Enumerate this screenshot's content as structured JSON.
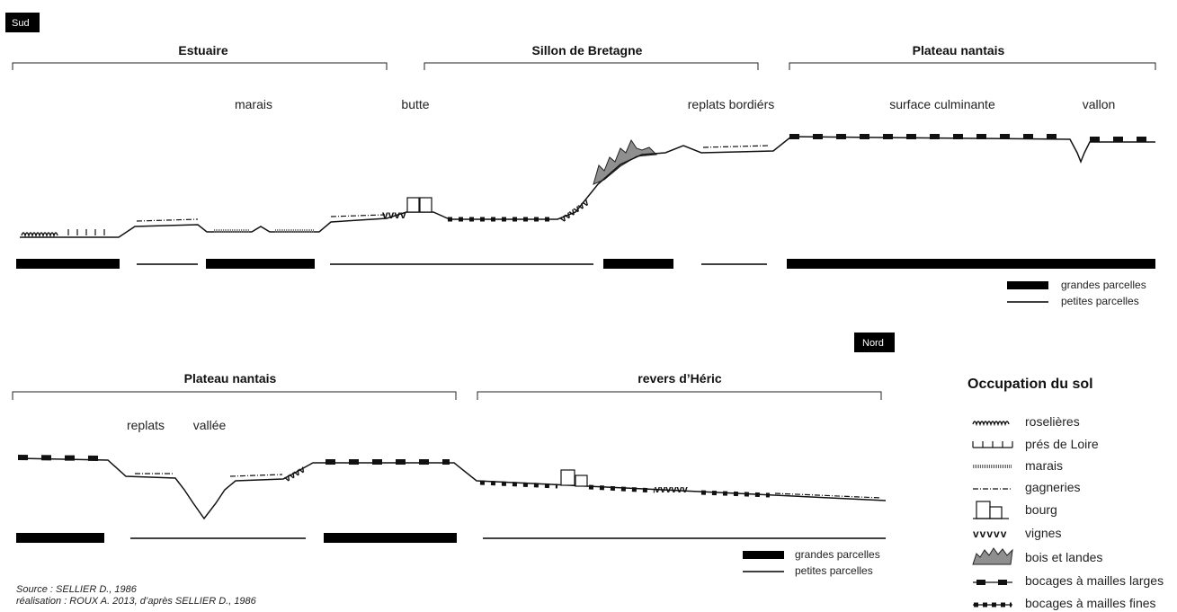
{
  "direction_tags": {
    "south": "Sud",
    "north": "Nord"
  },
  "top_profile": {
    "sections": [
      "Estuaire",
      "Sillon de Bretagne",
      "Plateau nantais"
    ],
    "landforms": [
      "marais",
      "butte",
      "replats bordiérs",
      "surface culminante",
      "vallon"
    ],
    "parcel_key": {
      "large": "grandes parcelles",
      "small": "petites parcelles"
    }
  },
  "bottom_profile": {
    "sections": [
      "Plateau nantais",
      "revers d’Héric"
    ],
    "landforms": [
      "replats",
      "vallée"
    ],
    "parcel_key": {
      "large": "grandes parcelles",
      "small": "petites parcelles"
    }
  },
  "legend": {
    "title": "Occupation du sol",
    "items": [
      {
        "label": "roselières",
        "symbol": "reeds-icon"
      },
      {
        "label": "prés de Loire",
        "symbol": "meadow-icon"
      },
      {
        "label": "marais",
        "symbol": "marsh-icon"
      },
      {
        "label": "gagneries",
        "symbol": "gagneries-icon"
      },
      {
        "label": "bourg",
        "symbol": "village-icon"
      },
      {
        "label": "vignes",
        "symbol": "vines-icon"
      },
      {
        "label": "bois et landes",
        "symbol": "woods-icon"
      },
      {
        "label": "bocages à mailles larges",
        "symbol": "wide-hedgerow-icon"
      },
      {
        "label": "bocages à mailles fines",
        "symbol": "fine-hedgerow-icon"
      }
    ]
  },
  "credits": {
    "source": "Source : SELLIER D., 1986",
    "realisation": "réalisation : ROUX A. 2013, d’après SELLIER D., 1986"
  }
}
